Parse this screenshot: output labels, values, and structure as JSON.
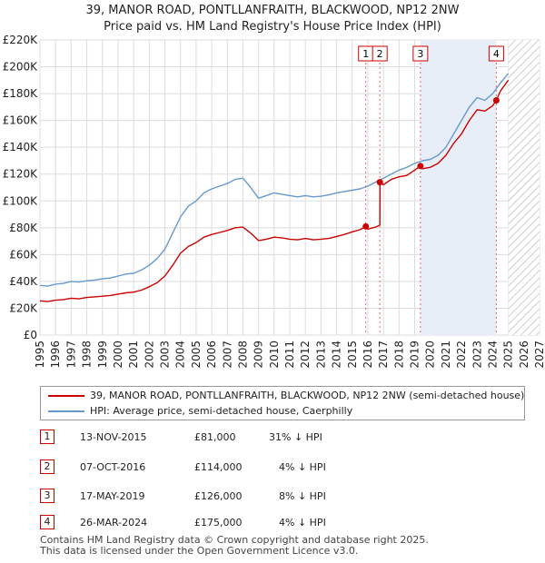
{
  "chart_data": {
    "type": "line",
    "title": "39, MANOR ROAD, PONTLLANFRAITH, BLACKWOOD, NP12 2NW",
    "subtitle": "Price paid vs. HM Land Registry's House Price Index (HPI)",
    "xlim": [
      1995,
      2027
    ],
    "ylim": [
      0,
      220000
    ],
    "x_ticks": [
      "1995",
      "1996",
      "1997",
      "1998",
      "1999",
      "2000",
      "2001",
      "2002",
      "2003",
      "2004",
      "2005",
      "2006",
      "2007",
      "2008",
      "2009",
      "2010",
      "2011",
      "2012",
      "2013",
      "2014",
      "2015",
      "2016",
      "2017",
      "2018",
      "2019",
      "2020",
      "2021",
      "2022",
      "2023",
      "2024",
      "2025",
      "2026",
      "2027"
    ],
    "y_ticks": [
      {
        "value": 0,
        "label": "£0"
      },
      {
        "value": 20000,
        "label": "£20K"
      },
      {
        "value": 40000,
        "label": "£40K"
      },
      {
        "value": 60000,
        "label": "£60K"
      },
      {
        "value": 80000,
        "label": "£80K"
      },
      {
        "value": 100000,
        "label": "£100K"
      },
      {
        "value": 120000,
        "label": "£120K"
      },
      {
        "value": 140000,
        "label": "£140K"
      },
      {
        "value": 160000,
        "label": "£160K"
      },
      {
        "value": 180000,
        "label": "£180K"
      },
      {
        "value": 200000,
        "label": "£200K"
      },
      {
        "value": 220000,
        "label": "£220K"
      }
    ],
    "highlight_range": [
      2019.37,
      2024.23
    ],
    "future_from": 2025.0,
    "series": [
      {
        "name": "HPI: Average price, semi-detached house, Caerphilly",
        "color": "#6699cc",
        "x": [
          1995,
          1995.5,
          1996,
          1996.5,
          1997,
          1997.5,
          1998,
          1998.5,
          1999,
          1999.5,
          2000,
          2000.5,
          2001,
          2001.5,
          2002,
          2002.5,
          2003,
          2003.5,
          2004,
          2004.5,
          2005,
          2005.5,
          2006,
          2006.5,
          2007,
          2007.5,
          2008,
          2008.5,
          2009,
          2009.5,
          2010,
          2010.5,
          2011,
          2011.5,
          2012,
          2012.5,
          2013,
          2013.5,
          2014,
          2014.5,
          2015,
          2015.5,
          2016,
          2016.5,
          2017,
          2017.5,
          2018,
          2018.5,
          2019,
          2019.5,
          2020,
          2020.5,
          2021,
          2021.5,
          2022,
          2022.5,
          2023,
          2023.5,
          2024,
          2024.5,
          2025
        ],
        "values": [
          37000,
          36500,
          38000,
          38500,
          40000,
          39500,
          40500,
          41000,
          42000,
          42500,
          44000,
          45500,
          46000,
          48500,
          52000,
          57000,
          64000,
          76000,
          88000,
          96000,
          100000,
          106000,
          109000,
          111000,
          113000,
          116000,
          117000,
          110000,
          102000,
          104000,
          106000,
          105000,
          104000,
          103000,
          104000,
          103000,
          103500,
          104500,
          106000,
          107000,
          108000,
          109000,
          111000,
          114000,
          117000,
          120000,
          123000,
          125000,
          128000,
          130000,
          131000,
          134000,
          140000,
          150000,
          160000,
          170000,
          177000,
          175000,
          180000,
          188000,
          195000
        ]
      },
      {
        "name": "39, MANOR ROAD, PONTLLANFRAITH, BLACKWOOD, NP12 2NW (semi-detached house)",
        "color": "#cc0000",
        "x": [
          1995,
          1995.5,
          1996,
          1996.5,
          1997,
          1997.5,
          1998,
          1998.5,
          1999,
          1999.5,
          2000,
          2000.5,
          2001,
          2001.5,
          2002,
          2002.5,
          2003,
          2003.5,
          2004,
          2004.5,
          2005,
          2005.5,
          2006,
          2006.5,
          2007,
          2007.5,
          2008,
          2008.5,
          2009,
          2009.5,
          2010,
          2010.5,
          2011,
          2011.5,
          2012,
          2012.5,
          2013,
          2013.5,
          2014,
          2014.5,
          2015,
          2015.5,
          2015.87,
          2016.0,
          2016.5,
          2016.77,
          2016.78,
          2017,
          2017.5,
          2018,
          2018.5,
          2019,
          2019.37,
          2019.5,
          2020,
          2020.5,
          2021,
          2021.5,
          2022,
          2022.5,
          2023,
          2023.5,
          2024,
          2024.23,
          2024.5,
          2025
        ],
        "values": [
          25500,
          25000,
          26000,
          26500,
          27500,
          27000,
          28000,
          28500,
          29000,
          29500,
          30500,
          31500,
          32000,
          33500,
          36000,
          39000,
          44000,
          52000,
          61000,
          66000,
          69000,
          73000,
          75000,
          76500,
          78000,
          80000,
          80500,
          76000,
          70500,
          71500,
          73000,
          72500,
          71500,
          71000,
          72000,
          71000,
          71500,
          72000,
          73500,
          75000,
          77000,
          78500,
          81000,
          79000,
          80500,
          82000,
          114000,
          112000,
          116000,
          118000,
          119000,
          123000,
          126000,
          124000,
          125000,
          128000,
          134000,
          143000,
          150000,
          160000,
          168000,
          167000,
          171000,
          175000,
          182000,
          190000
        ]
      }
    ],
    "sales": [
      {
        "label": "1",
        "x": 2015.87,
        "value": 81000
      },
      {
        "label": "2",
        "x": 2016.77,
        "value": 114000
      },
      {
        "label": "3",
        "x": 2019.37,
        "value": 126000
      },
      {
        "label": "4",
        "x": 2024.23,
        "value": 175000
      }
    ]
  },
  "legend": {
    "items": [
      {
        "label": "39, MANOR ROAD, PONTLLANFRAITH, BLACKWOOD, NP12 2NW (semi-detached house)",
        "color": "#cc0000"
      },
      {
        "label": "HPI: Average price, semi-detached house, Caerphilly",
        "color": "#6699cc"
      }
    ]
  },
  "table": {
    "rows": [
      {
        "num": "1",
        "date": "13-NOV-2015",
        "price": "£81,000",
        "hpi": "31% ↓ HPI"
      },
      {
        "num": "2",
        "date": "07-OCT-2016",
        "price": "£114,000",
        "hpi": "4% ↓ HPI"
      },
      {
        "num": "3",
        "date": "17-MAY-2019",
        "price": "£126,000",
        "hpi": "8% ↓ HPI"
      },
      {
        "num": "4",
        "date": "26-MAR-2024",
        "price": "£175,000",
        "hpi": "4% ↓ HPI"
      }
    ]
  },
  "footer": {
    "line1": "Contains HM Land Registry data © Crown copyright and database right 2025.",
    "line2": "This data is licensed under the Open Government Licence v3.0."
  }
}
